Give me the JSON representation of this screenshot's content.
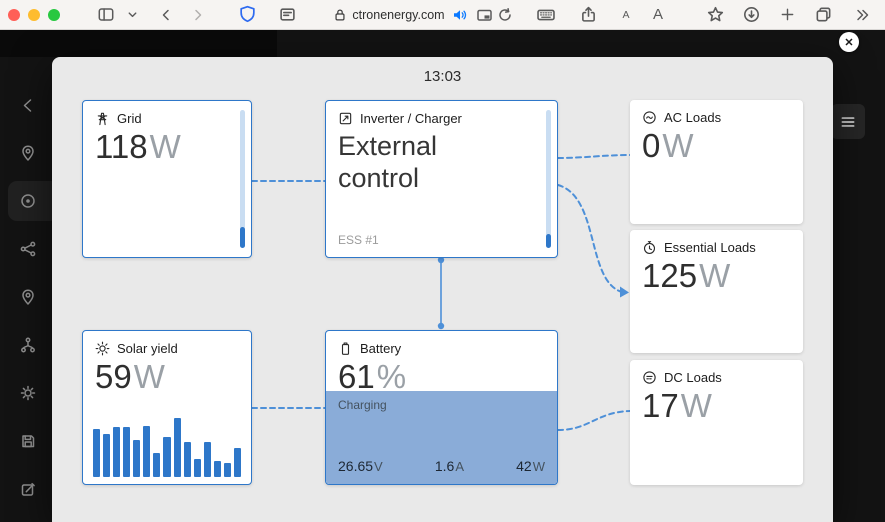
{
  "browser": {
    "url": "ctronenergy.com",
    "text_smaller": "A",
    "text_larger": "A",
    "icons": [
      "window-controls",
      "sidebar-toggle",
      "chevron-down",
      "back",
      "forward",
      "shield-extension",
      "reader",
      "lock",
      "audio-speaker",
      "picture-in-picture",
      "reload",
      "keyboard",
      "share",
      "text-size",
      "bookmark-star",
      "downloads",
      "new-tab",
      "tab-overview",
      "more-chevrons"
    ]
  },
  "overlay": {
    "time": "13:03"
  },
  "cards": {
    "grid": {
      "label": "Grid",
      "value": "118",
      "unit": "W",
      "gauge_pct": 15
    },
    "inverter": {
      "label": "Inverter / Charger",
      "mode": "External control",
      "instance": "ESS #1",
      "gauge_pct": 10
    },
    "ac_loads": {
      "label": "AC Loads",
      "value": "0",
      "unit": "W"
    },
    "essential_loads": {
      "label": "Essential Loads",
      "value": "125",
      "unit": "W"
    },
    "solar": {
      "label": "Solar yield",
      "value": "59",
      "unit": "W"
    },
    "battery": {
      "label": "Battery",
      "soc": 61,
      "soc_unit": "%",
      "state": "Charging",
      "voltage": "26.65",
      "voltage_unit": "V",
      "current": "1.6",
      "current_unit": "A",
      "power": "42",
      "power_unit": "W"
    },
    "dc_loads": {
      "label": "DC Loads",
      "value": "17",
      "unit": "W"
    }
  },
  "chart_data": {
    "type": "bar",
    "title": "Solar yield mini bar history (no axis labels visible)",
    "values_relative_pct": [
      78,
      69,
      81,
      81,
      60,
      83,
      38,
      64,
      95,
      57,
      29,
      57,
      26,
      22,
      47
    ],
    "series_color": "#2e77c9"
  },
  "sidebar": {
    "items": [
      {
        "icon": "back-chevron"
      },
      {
        "icon": "map-pin"
      },
      {
        "icon": "dashboard-target",
        "active": true
      },
      {
        "icon": "connections"
      },
      {
        "icon": "map-pin"
      },
      {
        "icon": "network-branch"
      },
      {
        "icon": "settings-gear"
      },
      {
        "icon": "save-floppy"
      },
      {
        "icon": "edit-pencil"
      }
    ]
  },
  "colors": {
    "accent_blue": "#2e77c9",
    "connector_blue": "#4e90d8",
    "battery_fill": "#8aacd8",
    "modal_bg": "#e9e9e9",
    "page_bg": "#131313"
  }
}
